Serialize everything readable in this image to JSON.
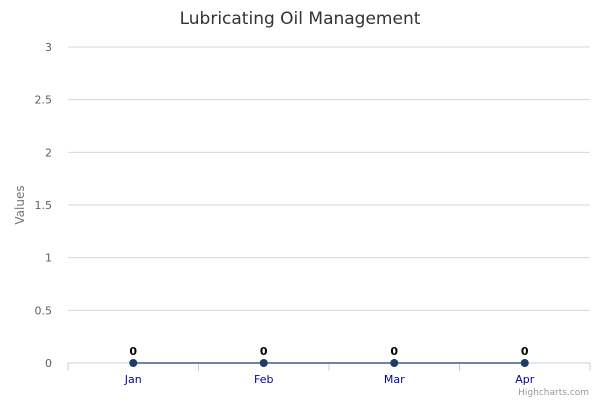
{
  "chart_data": {
    "type": "line",
    "title": "Lubricating Oil Management",
    "ylabel": "Values",
    "xlabel": "",
    "categories": [
      "Jan",
      "Feb",
      "Mar",
      "Apr"
    ],
    "series": [
      {
        "values": [
          0,
          0,
          0,
          0
        ],
        "color": "#1f3b66"
      }
    ],
    "ylim": [
      0,
      3
    ],
    "yticks": [
      0,
      0.5,
      1,
      1.5,
      2,
      2.5,
      3
    ],
    "ytick_labels": [
      "0",
      "0.5",
      "1",
      "1.5",
      "2",
      "2.5",
      "3"
    ],
    "grid": true,
    "data_labels": true,
    "legend": "none"
  },
  "credits": "Highcharts.com"
}
